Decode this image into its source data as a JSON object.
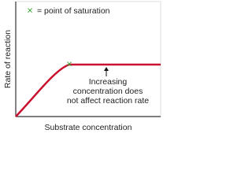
{
  "legend": {
    "marker": "×",
    "label": "= point of saturation"
  },
  "axes": {
    "x_label": "Substrate concentration",
    "y_label": "Rate of reaction"
  },
  "annotation": {
    "lines": [
      "Increasing",
      "concentration does",
      "not affect reaction rate"
    ]
  }
}
